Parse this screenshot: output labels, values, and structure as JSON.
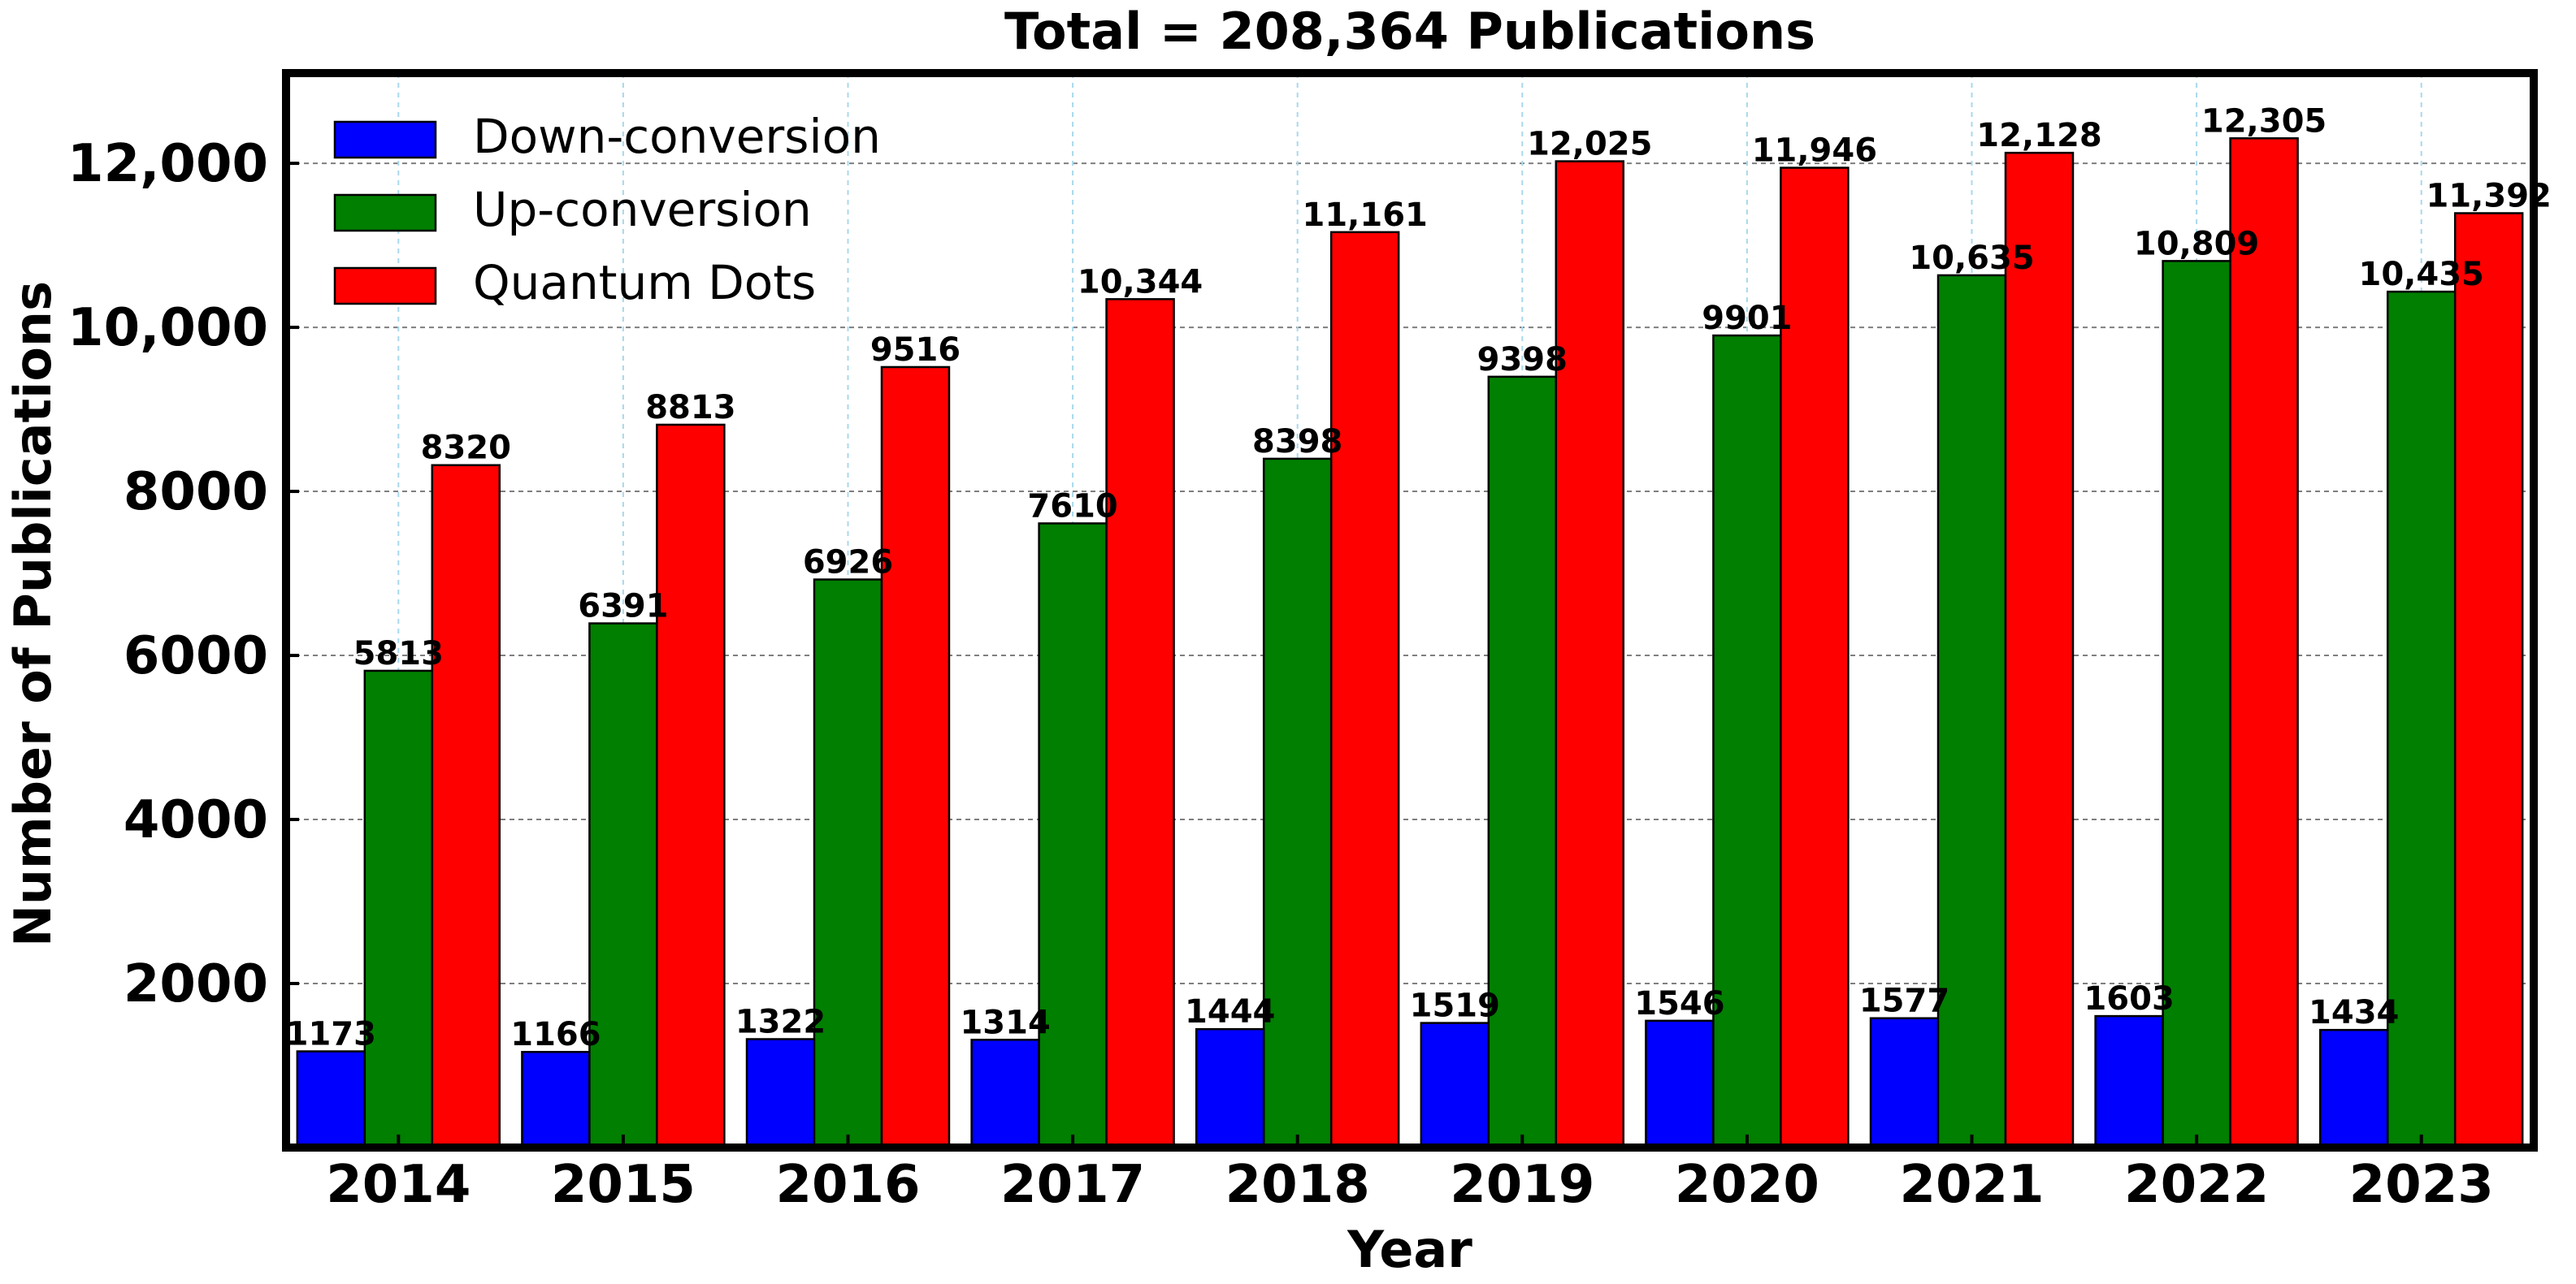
{
  "chart_data": {
    "type": "bar",
    "title": "Total =  208,364 Publications",
    "xlabel": "Year",
    "ylabel": "Number of Publications",
    "categories": [
      "2014",
      "2015",
      "2016",
      "2017",
      "2018",
      "2019",
      "2020",
      "2021",
      "2022",
      "2023"
    ],
    "ylim": [
      0,
      13100
    ],
    "yticks": [
      2000,
      4000,
      6000,
      8000,
      10000,
      12000
    ],
    "ytick_labels": [
      "2000",
      "4000",
      "6000",
      "8000",
      "10,000",
      "12,000"
    ],
    "grid": true,
    "legend_position": "top-left",
    "series": [
      {
        "name": "Down-conversion",
        "color": "#0000ff",
        "values": [
          1173,
          1166,
          1322,
          1314,
          1444,
          1519,
          1546,
          1577,
          1603,
          1434
        ],
        "labels": [
          "1173",
          "1166",
          "1322",
          "1314",
          "1444",
          "1519",
          "1546",
          "1577",
          "1603",
          "1434"
        ]
      },
      {
        "name": "Up-conversion",
        "color": "#007f00",
        "values": [
          5813,
          6391,
          6926,
          7610,
          8398,
          9398,
          9901,
          10635,
          10809,
          10435
        ],
        "labels": [
          "5813",
          "6391",
          "6926",
          "7610",
          "8398",
          "9398",
          "9901",
          "10,635",
          "10,809",
          "10,435"
        ]
      },
      {
        "name": "Quantum Dots",
        "color": "#ff0000",
        "values": [
          8320,
          8813,
          9516,
          10344,
          11161,
          12025,
          11946,
          12128,
          12305,
          11392
        ],
        "labels": [
          "8320",
          "8813",
          "9516",
          "10,344",
          "11,161",
          "12,025",
          "11,946",
          "12,128",
          "12,305",
          "11,392"
        ]
      }
    ]
  }
}
